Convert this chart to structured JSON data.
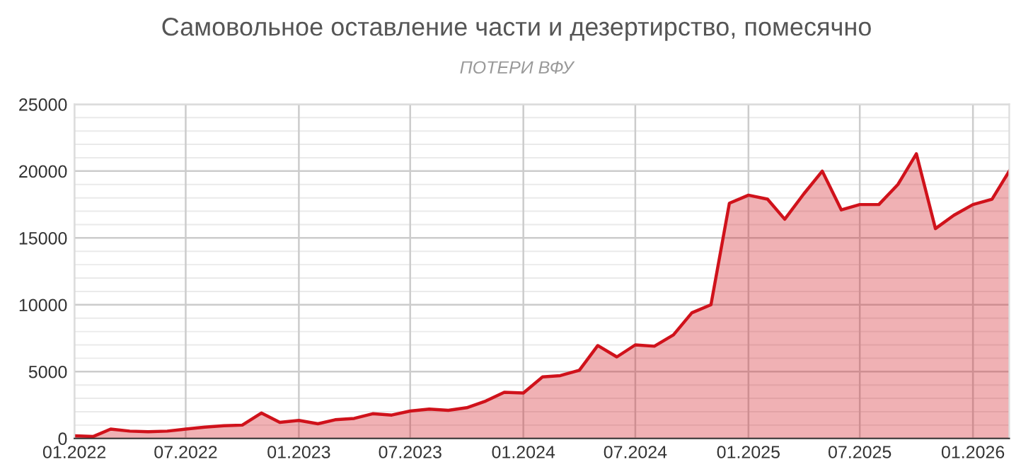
{
  "chart_data": {
    "type": "area",
    "title": "Самовольное оставление части и дезертирство, помесячно",
    "subtitle": "ПОТЕРИ ВФУ",
    "x": [
      "2022-01",
      "2022-02",
      "2022-03",
      "2022-04",
      "2022-05",
      "2022-06",
      "2022-07",
      "2022-08",
      "2022-09",
      "2022-10",
      "2022-11",
      "2022-12",
      "2023-01",
      "2023-02",
      "2023-03",
      "2023-04",
      "2023-05",
      "2023-06",
      "2023-07",
      "2023-08",
      "2023-09",
      "2023-10",
      "2023-11",
      "2023-12",
      "2024-01",
      "2024-02",
      "2024-03",
      "2024-04",
      "2024-05",
      "2024-06",
      "2024-07",
      "2024-08",
      "2024-09",
      "2024-10",
      "2024-11",
      "2024-12",
      "2025-01",
      "2025-02",
      "2025-03",
      "2025-04",
      "2025-05",
      "2025-06",
      "2025-07",
      "2025-08",
      "2025-09",
      "2025-10",
      "2025-11",
      "2025-12",
      "2026-01",
      "2026-02",
      "2026-03"
    ],
    "series": [
      {
        "color": "#d0121b",
        "values": [
          200,
          150,
          700,
          550,
          500,
          550,
          700,
          850,
          950,
          1000,
          1900,
          1200,
          1350,
          1100,
          1400,
          1500,
          1850,
          1750,
          2050,
          2200,
          2100,
          2300,
          2800,
          3450,
          3400,
          4600,
          4700,
          5100,
          6950,
          6100,
          7000,
          6900,
          7750,
          9400,
          10000,
          17600,
          18200,
          17900,
          16400,
          18300,
          20000,
          17100,
          17500,
          17500,
          19000,
          21300,
          15700,
          16700,
          17500,
          17900,
          20000
        ]
      }
    ],
    "xlim": [
      "2022-01",
      "2026-03"
    ],
    "xticks": [
      {
        "value": "2022-01",
        "label": "01.2022"
      },
      {
        "value": "2022-07",
        "label": "07.2022"
      },
      {
        "value": "2023-01",
        "label": "01.2023"
      },
      {
        "value": "2023-07",
        "label": "07.2023"
      },
      {
        "value": "2024-01",
        "label": "01.2024"
      },
      {
        "value": "2024-07",
        "label": "07.2024"
      },
      {
        "value": "2025-01",
        "label": "01.2025"
      },
      {
        "value": "2025-07",
        "label": "07.2025"
      },
      {
        "value": "2026-01",
        "label": "01.2026"
      }
    ],
    "ylim": [
      0,
      25000
    ],
    "yticks": [
      0,
      5000,
      10000,
      15000,
      20000,
      25000
    ],
    "grid": true,
    "legend": false
  }
}
